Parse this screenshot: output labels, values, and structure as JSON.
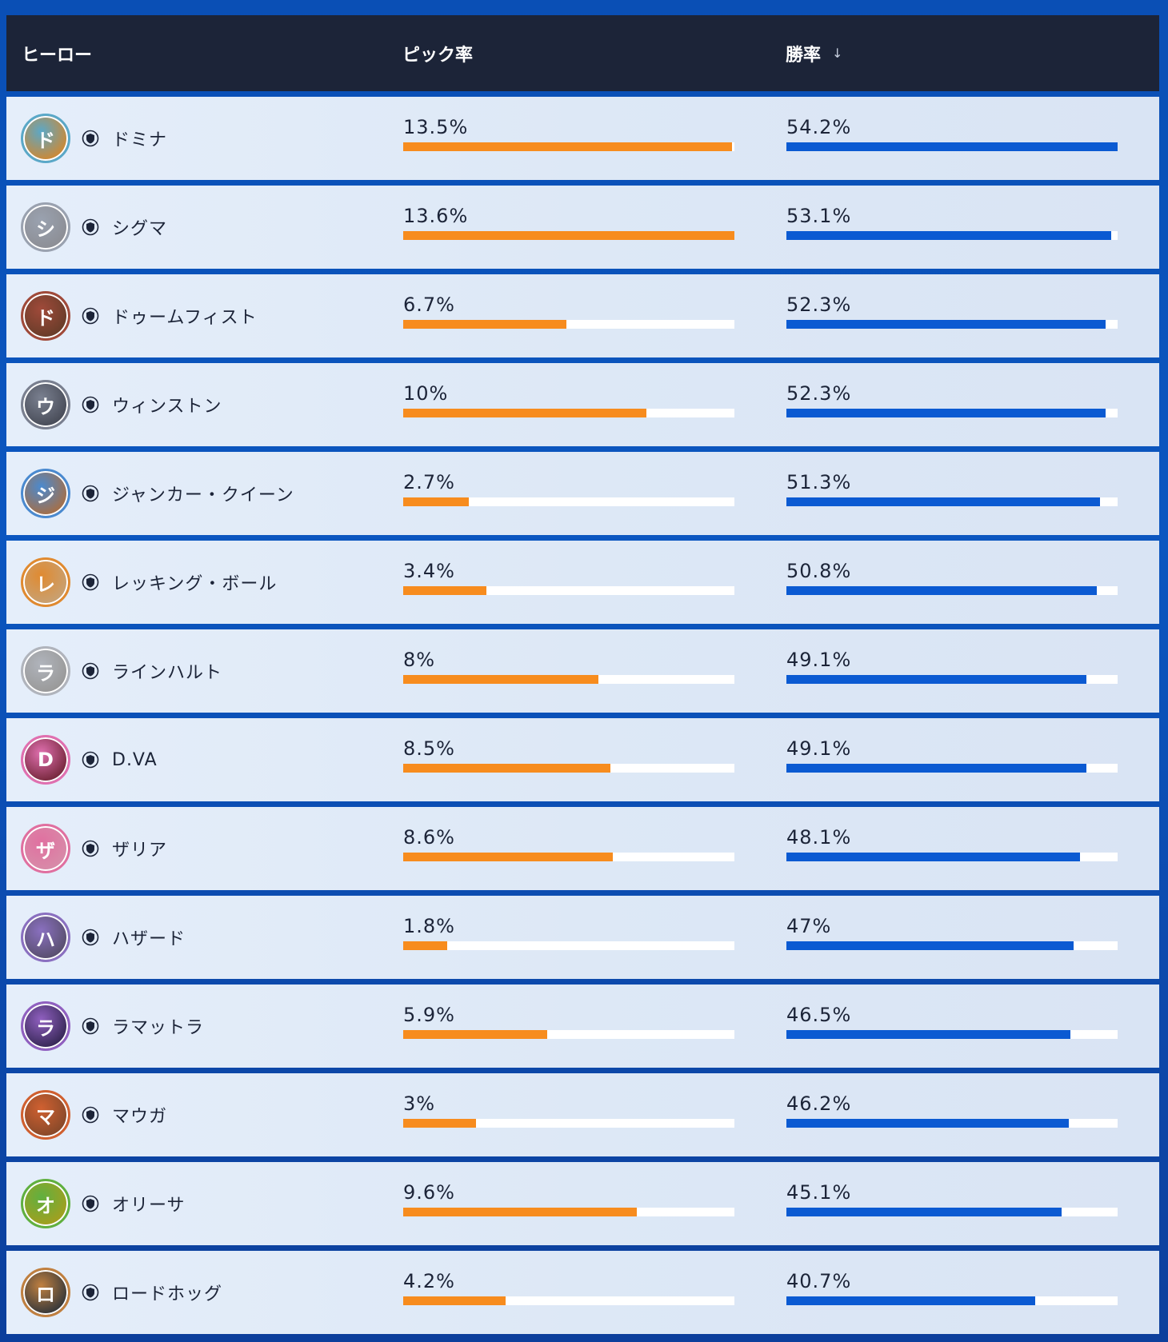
{
  "header": {
    "hero_label": "ヒーロー",
    "pick_label": "ピック率",
    "win_label": "勝率",
    "sort_icon": "↓"
  },
  "colors": {
    "pick_bar": "#f78c1e",
    "win_bar": "#0b5ad2",
    "header_bg": "#1c2438"
  },
  "scales": {
    "pick_max": 13.6,
    "win_max": 54.2
  },
  "rows": [
    {
      "name": "ドミナ",
      "pick": "13.5%",
      "pick_value": 13.5,
      "win": "54.2%",
      "win_value": 54.2,
      "avatar_color": "#c98a3a",
      "ring": "#5aa8c8",
      "initial": "ド"
    },
    {
      "name": "シグマ",
      "pick": "13.6%",
      "pick_value": 13.6,
      "win": "53.1%",
      "win_value": 53.1,
      "avatar_color": "#8d8f96",
      "ring": "#9aa2b0",
      "initial": "シ"
    },
    {
      "name": "ドゥームフィスト",
      "pick": "6.7%",
      "pick_value": 6.7,
      "win": "52.3%",
      "win_value": 52.3,
      "avatar_color": "#6a3d2a",
      "ring": "#a04a3a",
      "initial": "ド"
    },
    {
      "name": "ウィンストン",
      "pick": "10%",
      "pick_value": 10,
      "win": "52.3%",
      "win_value": 52.3,
      "avatar_color": "#4a4e5a",
      "ring": "#7a8090",
      "initial": "ウ"
    },
    {
      "name": "ジャンカー・クイーン",
      "pick": "2.7%",
      "pick_value": 2.7,
      "win": "51.3%",
      "win_value": 51.3,
      "avatar_color": "#a2704c",
      "ring": "#4a8ad0",
      "initial": "ジ"
    },
    {
      "name": "レッキング・ボール",
      "pick": "3.4%",
      "pick_value": 3.4,
      "win": "50.8%",
      "win_value": 50.8,
      "avatar_color": "#c9a070",
      "ring": "#e08a30",
      "initial": "レ"
    },
    {
      "name": "ラインハルト",
      "pick": "8%",
      "pick_value": 8,
      "win": "49.1%",
      "win_value": 49.1,
      "avatar_color": "#9a9a9a",
      "ring": "#b0b4bc",
      "initial": "ラ"
    },
    {
      "name": "D.VA",
      "pick": "8.5%",
      "pick_value": 8.5,
      "win": "49.1%",
      "win_value": 49.1,
      "avatar_color": "#7a2a40",
      "ring": "#e070b0",
      "initial": "D"
    },
    {
      "name": "ザリア",
      "pick": "8.6%",
      "pick_value": 8.6,
      "win": "48.1%",
      "win_value": 48.1,
      "avatar_color": "#d88aa8",
      "ring": "#e070a0",
      "initial": "ザ"
    },
    {
      "name": "ハザード",
      "pick": "1.8%",
      "pick_value": 1.8,
      "win": "47%",
      "win_value": 47,
      "avatar_color": "#5a5070",
      "ring": "#8a70c0",
      "initial": "ハ"
    },
    {
      "name": "ラマットラ",
      "pick": "5.9%",
      "pick_value": 5.9,
      "win": "46.5%",
      "win_value": 46.5,
      "avatar_color": "#3a2a5a",
      "ring": "#9060c0",
      "initial": "ラ"
    },
    {
      "name": "マウガ",
      "pick": "3%",
      "pick_value": 3,
      "win": "46.2%",
      "win_value": 46.2,
      "avatar_color": "#8a4a2a",
      "ring": "#d06030",
      "initial": "マ"
    },
    {
      "name": "オリーサ",
      "pick": "9.6%",
      "pick_value": 9.6,
      "win": "45.1%",
      "win_value": 45.1,
      "avatar_color": "#a0a020",
      "ring": "#60b040",
      "initial": "オ"
    },
    {
      "name": "ロードホッグ",
      "pick": "4.2%",
      "pick_value": 4.2,
      "win": "40.7%",
      "win_value": 40.7,
      "avatar_color": "#3a3a3a",
      "ring": "#c08040",
      "initial": "ロ"
    }
  ]
}
